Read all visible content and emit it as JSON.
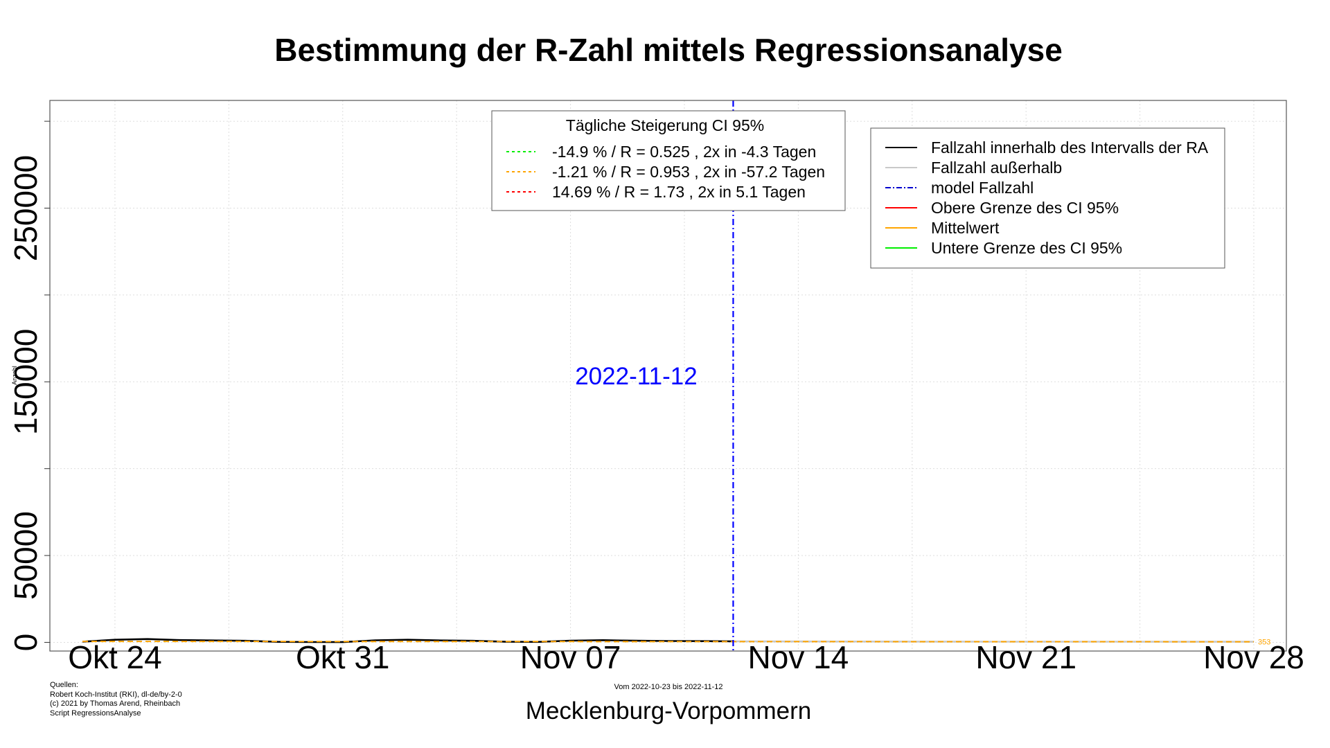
{
  "chart_data": {
    "type": "line",
    "title": "Bestimmung der R-Zahl mittels Regressionsanalyse",
    "xlabel": "Mecklenburg-Vorpommern",
    "ylabel": "Anzahl",
    "subtitle": "Vom 2022-10-23 bis 2022-11-12",
    "x_ticks": [
      "Okt 24",
      "Okt 31",
      "Nov 07",
      "Nov 14",
      "Nov 21",
      "Nov 28"
    ],
    "x_tick_dates": [
      "2022-10-24",
      "2022-10-31",
      "2022-11-07",
      "2022-11-14",
      "2022-11-21",
      "2022-11-28"
    ],
    "xlim": [
      "2022-10-22",
      "2022-11-29"
    ],
    "y_ticks": [
      0,
      50000,
      150000,
      250000
    ],
    "ylim": [
      -5000,
      312000
    ],
    "grid": true,
    "vline": {
      "date": "2022-11-12",
      "label": "2022-11-12",
      "color": "#0000ff"
    },
    "end_label": "353",
    "legend_ci": {
      "title": "Tägliche Steigerung CI  95%",
      "entries": [
        {
          "text": "-14.9 % / R = 0.525 , 2x in -4.3 Tagen",
          "color": "#00ee00"
        },
        {
          "text": "-1.21 % / R = 0.953 , 2x in -57.2 Tagen",
          "color": "#ffa500"
        },
        {
          "text": "14.69 % / R = 1.73 , 2x in 5.1 Tagen",
          "color": "#ff0000"
        }
      ]
    },
    "legend_series": {
      "entries": [
        {
          "text": "Fallzahl innerhalb des Intervalls der RA",
          "color": "#000000",
          "dash": "solid"
        },
        {
          "text": "Fallzahl außerhalb",
          "color": "#c8c8c8",
          "dash": "solid"
        },
        {
          "text": "model Fallzahl",
          "color": "#0000cd",
          "dash": "dashdot"
        },
        {
          "text": "Obere Grenze des CI 95%",
          "color": "#ff0000",
          "dash": "solid"
        },
        {
          "text": "Mittelwert",
          "color": "#ffa500",
          "dash": "solid"
        },
        {
          "text": "Untere Grenze des CI 95%",
          "color": "#00ee00",
          "dash": "solid"
        }
      ]
    },
    "series": [
      {
        "name": "Fallzahl innerhalb des Intervalls der RA",
        "color": "#000000",
        "x": [
          "2022-10-23",
          "2022-10-24",
          "2022-10-25",
          "2022-10-26",
          "2022-10-27",
          "2022-10-28",
          "2022-10-29",
          "2022-10-30",
          "2022-10-31",
          "2022-11-01",
          "2022-11-02",
          "2022-11-03",
          "2022-11-04",
          "2022-11-05",
          "2022-11-06",
          "2022-11-07",
          "2022-11-08",
          "2022-11-09",
          "2022-11-10",
          "2022-11-11",
          "2022-11-12"
        ],
        "y": [
          400,
          1500,
          1900,
          1300,
          1100,
          900,
          300,
          200,
          150,
          1200,
          1500,
          1100,
          900,
          350,
          250,
          1000,
          1250,
          950,
          800,
          700,
          600
        ]
      },
      {
        "name": "Fallzahl außerhalb",
        "color": "#c8c8c8",
        "x": [
          "2022-11-12",
          "2022-11-14",
          "2022-11-16",
          "2022-11-18",
          "2022-11-20",
          "2022-11-22",
          "2022-11-24",
          "2022-11-26",
          "2022-11-28"
        ],
        "y": [
          600,
          500,
          450,
          420,
          400,
          390,
          380,
          360,
          353
        ]
      },
      {
        "name": "Mittelwert",
        "color": "#ffa500",
        "dash": "dashed",
        "x": [
          "2022-10-23",
          "2022-11-28"
        ],
        "y": [
          540,
          353
        ]
      }
    ]
  },
  "footer": {
    "sources_lines": [
      "Quellen:",
      "Robert Koch-Institut (RKI), dl-de/by-2-0",
      "(c) 2021 by Thomas Arend, Rheinbach",
      "Script RegressionsAnalyse"
    ]
  }
}
